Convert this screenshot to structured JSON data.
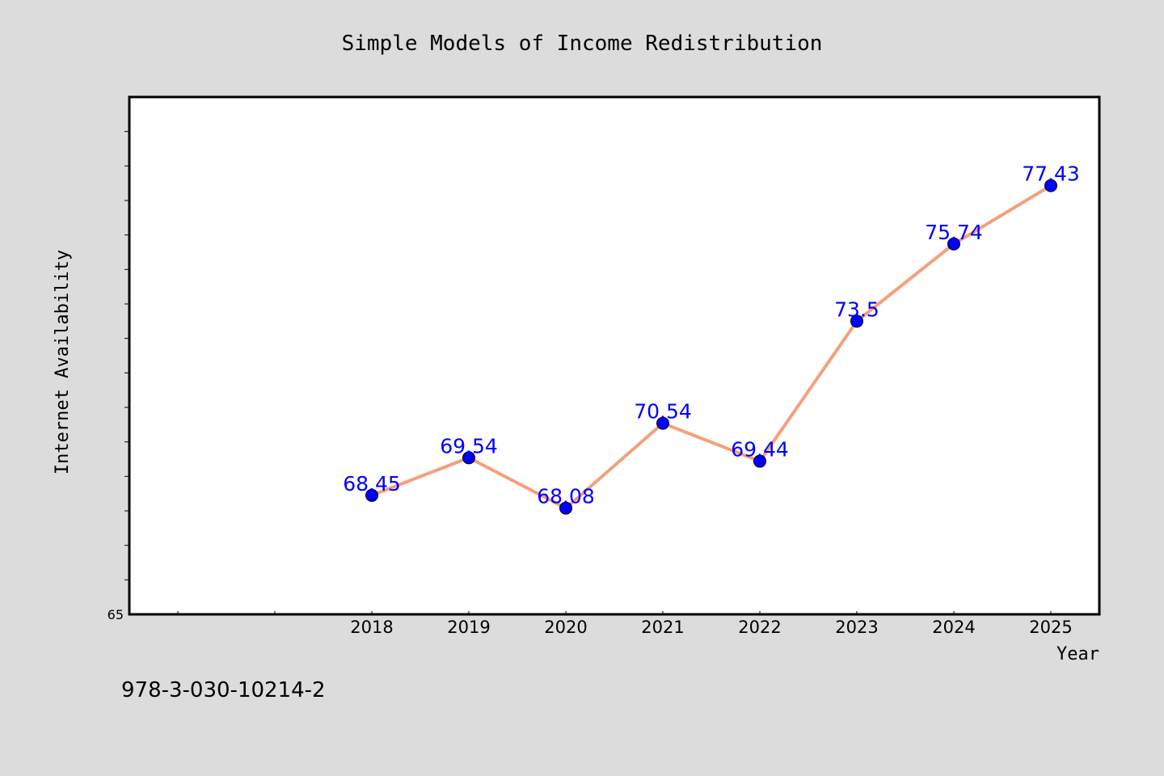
{
  "colors": {
    "background": "#dcdcdc",
    "plot_background": "#ffffff",
    "line": "#f4a07c",
    "marker": "#0000ff",
    "data_label": "#0000ff"
  },
  "footer_text": "978-3-030-10214-2",
  "chart_data": {
    "type": "line",
    "title": "Simple Models of Income Redistribution",
    "xlabel": "Year",
    "ylabel": "Internet Availability",
    "categories": [
      "2018",
      "2019",
      "2020",
      "2021",
      "2022",
      "2023",
      "2024",
      "2025"
    ],
    "series": [
      {
        "values": [
          68.45,
          69.54,
          68.08,
          70.54,
          69.44,
          73.5,
          75.74,
          77.43
        ],
        "labels": [
          "68.45",
          "69.54",
          "68.08",
          "70.54",
          "69.44",
          "73.5",
          "75.74",
          "77.43"
        ]
      }
    ],
    "ylim": [
      65,
      80
    ],
    "y_tick_labels": [
      "65"
    ],
    "grid": false,
    "legend": "none"
  }
}
